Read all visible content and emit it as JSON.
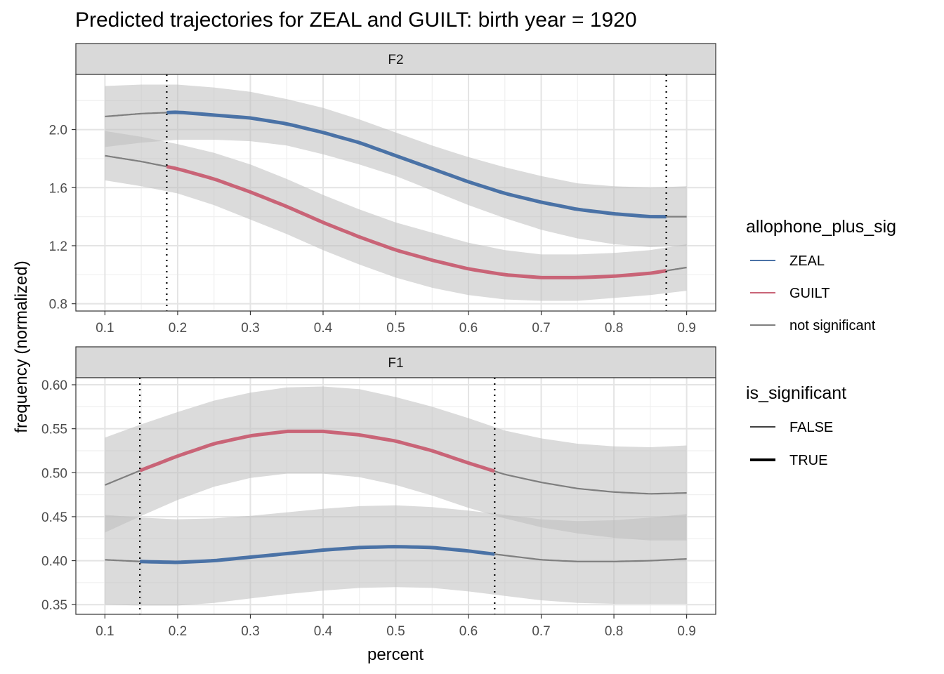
{
  "chart_data": {
    "type": "line",
    "title": "Predicted trajectories for ZEAL and GUILT: birth year = 1920",
    "xlabel": "percent",
    "ylabel": "frequency (normalized)",
    "x_ticks": [
      "0.1",
      "0.2",
      "0.3",
      "0.4",
      "0.5",
      "0.6",
      "0.7",
      "0.8",
      "0.9"
    ],
    "grid": true,
    "legend_position": "right",
    "colors": {
      "ZEAL": "#4a72a6",
      "GUILT": "#c96477",
      "not significant": "#7f7f7f",
      "ribbon": "#bdbdbd"
    },
    "legends": [
      {
        "title": "allophone_plus_sig",
        "entries": [
          {
            "label": "ZEAL",
            "color": "#4a72a6",
            "width": 2
          },
          {
            "label": "GUILT",
            "color": "#c96477",
            "width": 2
          },
          {
            "label": "not significant",
            "color": "#7f7f7f",
            "width": 2
          }
        ]
      },
      {
        "title": "is_significant",
        "entries": [
          {
            "label": "FALSE",
            "color": "#000000",
            "width": 1.6
          },
          {
            "label": "TRUE",
            "color": "#000000",
            "width": 4
          }
        ]
      }
    ],
    "panels": [
      {
        "label": "F2",
        "xlim": [
          0.06,
          0.94
        ],
        "ylim": [
          0.75,
          2.38
        ],
        "y_ticks": [
          0.8,
          1.2,
          1.6,
          2.0
        ],
        "y_tick_labels": [
          "0.8",
          "1.2",
          "1.6",
          "2.0"
        ],
        "sig_range": [
          0.185,
          0.872
        ],
        "series": [
          {
            "name": "ZEAL",
            "x": [
              0.1,
              0.15,
              0.2,
              0.25,
              0.3,
              0.35,
              0.4,
              0.45,
              0.5,
              0.55,
              0.6,
              0.65,
              0.7,
              0.75,
              0.8,
              0.85,
              0.9
            ],
            "y": [
              2.09,
              2.11,
              2.12,
              2.1,
              2.08,
              2.04,
              1.98,
              1.91,
              1.82,
              1.73,
              1.64,
              1.56,
              1.5,
              1.45,
              1.42,
              1.4,
              1.4
            ],
            "lower": [
              1.88,
              1.91,
              1.93,
              1.93,
              1.92,
              1.89,
              1.83,
              1.76,
              1.68,
              1.58,
              1.48,
              1.39,
              1.31,
              1.25,
              1.21,
              1.19,
              1.2
            ],
            "upper": [
              2.3,
              2.31,
              2.31,
              2.29,
              2.26,
              2.21,
              2.15,
              2.07,
              1.98,
              1.89,
              1.81,
              1.74,
              1.68,
              1.63,
              1.61,
              1.6,
              1.61
            ]
          },
          {
            "name": "GUILT",
            "x": [
              0.1,
              0.15,
              0.2,
              0.25,
              0.3,
              0.35,
              0.4,
              0.45,
              0.5,
              0.55,
              0.6,
              0.65,
              0.7,
              0.75,
              0.8,
              0.85,
              0.9
            ],
            "y": [
              1.82,
              1.78,
              1.73,
              1.66,
              1.57,
              1.47,
              1.36,
              1.26,
              1.17,
              1.1,
              1.04,
              1.0,
              0.98,
              0.98,
              0.99,
              1.01,
              1.05
            ],
            "lower": [
              1.65,
              1.61,
              1.56,
              1.48,
              1.38,
              1.28,
              1.17,
              1.07,
              0.98,
              0.91,
              0.86,
              0.83,
              0.82,
              0.82,
              0.84,
              0.86,
              0.89
            ],
            "upper": [
              1.99,
              1.95,
              1.9,
              1.84,
              1.76,
              1.66,
              1.55,
              1.45,
              1.36,
              1.29,
              1.22,
              1.17,
              1.14,
              1.14,
              1.15,
              1.17,
              1.21
            ]
          }
        ]
      },
      {
        "label": "F1",
        "xlim": [
          0.06,
          0.94
        ],
        "ylim": [
          0.339,
          0.608
        ],
        "y_ticks": [
          0.35,
          0.4,
          0.45,
          0.5,
          0.55,
          0.6
        ],
        "y_tick_labels": [
          "0.35",
          "0.40",
          "0.45",
          "0.50",
          "0.55",
          "0.60"
        ],
        "sig_range": [
          0.148,
          0.636
        ],
        "series": [
          {
            "name": "ZEAL",
            "x": [
              0.1,
              0.15,
              0.2,
              0.25,
              0.3,
              0.35,
              0.4,
              0.45,
              0.5,
              0.55,
              0.6,
              0.65,
              0.7,
              0.75,
              0.8,
              0.85,
              0.9
            ],
            "y": [
              0.401,
              0.399,
              0.398,
              0.4,
              0.404,
              0.408,
              0.412,
              0.415,
              0.416,
              0.415,
              0.411,
              0.406,
              0.401,
              0.399,
              0.399,
              0.4,
              0.402
            ],
            "lower": [
              0.35,
              0.349,
              0.349,
              0.352,
              0.357,
              0.362,
              0.366,
              0.369,
              0.37,
              0.369,
              0.365,
              0.36,
              0.355,
              0.352,
              0.351,
              0.351,
              0.351
            ],
            "upper": [
              0.452,
              0.449,
              0.447,
              0.448,
              0.451,
              0.455,
              0.459,
              0.462,
              0.463,
              0.461,
              0.457,
              0.452,
              0.447,
              0.445,
              0.446,
              0.449,
              0.453
            ]
          },
          {
            "name": "GUILT",
            "x": [
              0.1,
              0.15,
              0.2,
              0.25,
              0.3,
              0.35,
              0.4,
              0.45,
              0.5,
              0.55,
              0.6,
              0.65,
              0.7,
              0.75,
              0.8,
              0.85,
              0.9
            ],
            "y": [
              0.486,
              0.503,
              0.519,
              0.533,
              0.542,
              0.547,
              0.547,
              0.543,
              0.536,
              0.525,
              0.511,
              0.498,
              0.489,
              0.482,
              0.478,
              0.476,
              0.477
            ],
            "lower": [
              0.432,
              0.451,
              0.469,
              0.484,
              0.494,
              0.499,
              0.499,
              0.495,
              0.486,
              0.474,
              0.46,
              0.448,
              0.438,
              0.431,
              0.426,
              0.423,
              0.423
            ],
            "upper": [
              0.54,
              0.555,
              0.569,
              0.582,
              0.591,
              0.597,
              0.598,
              0.595,
              0.586,
              0.575,
              0.562,
              0.548,
              0.539,
              0.533,
              0.53,
              0.529,
              0.531
            ]
          }
        ]
      }
    ]
  }
}
